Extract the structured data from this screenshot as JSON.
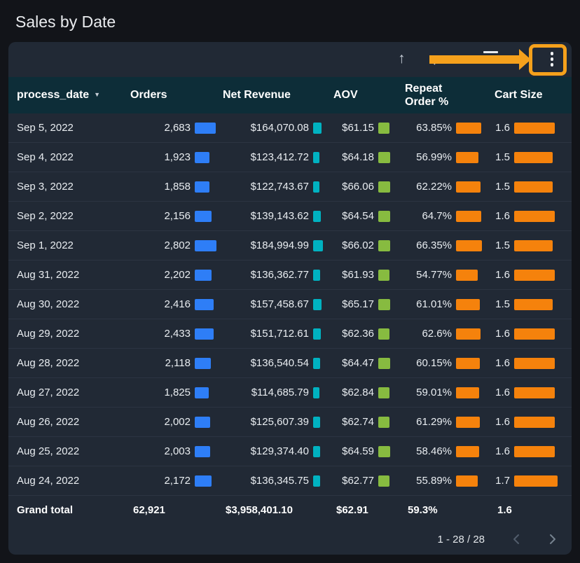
{
  "page": {
    "title": "Sales by Date"
  },
  "card": {
    "toolbar": {
      "up_glyph": "↑",
      "down_glyph": "↓"
    },
    "pagination": {
      "label": "1 - 28 / 28"
    }
  },
  "annotation": {
    "color": "#f5a11c"
  },
  "table": {
    "sort_indicator": "▼",
    "columns": [
      {
        "label": "process_date",
        "sort": "desc"
      },
      {
        "label": "Orders"
      },
      {
        "label": "Net Revenue"
      },
      {
        "label": "AOV"
      },
      {
        "label": "Repeat Order %"
      },
      {
        "label": "Cart Size"
      }
    ],
    "rows": [
      {
        "date": "Sep 5, 2022",
        "orders": "2,683",
        "revenue": "$164,070.08",
        "aov": "$61.15",
        "repeat": "63.85%",
        "cart": "1.6"
      },
      {
        "date": "Sep 4, 2022",
        "orders": "1,923",
        "revenue": "$123,412.72",
        "aov": "$64.18",
        "repeat": "56.99%",
        "cart": "1.5"
      },
      {
        "date": "Sep 3, 2022",
        "orders": "1,858",
        "revenue": "$122,743.67",
        "aov": "$66.06",
        "repeat": "62.22%",
        "cart": "1.5"
      },
      {
        "date": "Sep 2, 2022",
        "orders": "2,156",
        "revenue": "$139,143.62",
        "aov": "$64.54",
        "repeat": "64.7%",
        "cart": "1.6"
      },
      {
        "date": "Sep 1, 2022",
        "orders": "2,802",
        "revenue": "$184,994.99",
        "aov": "$66.02",
        "repeat": "66.35%",
        "cart": "1.5"
      },
      {
        "date": "Aug 31, 2022",
        "orders": "2,202",
        "revenue": "$136,362.77",
        "aov": "$61.93",
        "repeat": "54.77%",
        "cart": "1.6"
      },
      {
        "date": "Aug 30, 2022",
        "orders": "2,416",
        "revenue": "$157,458.67",
        "aov": "$65.17",
        "repeat": "61.01%",
        "cart": "1.5"
      },
      {
        "date": "Aug 29, 2022",
        "orders": "2,433",
        "revenue": "$151,712.61",
        "aov": "$62.36",
        "repeat": "62.6%",
        "cart": "1.6"
      },
      {
        "date": "Aug 28, 2022",
        "orders": "2,118",
        "revenue": "$136,540.54",
        "aov": "$64.47",
        "repeat": "60.15%",
        "cart": "1.6"
      },
      {
        "date": "Aug 27, 2022",
        "orders": "1,825",
        "revenue": "$114,685.79",
        "aov": "$62.84",
        "repeat": "59.01%",
        "cart": "1.6"
      },
      {
        "date": "Aug 26, 2022",
        "orders": "2,002",
        "revenue": "$125,607.39",
        "aov": "$62.74",
        "repeat": "61.29%",
        "cart": "1.6"
      },
      {
        "date": "Aug 25, 2022",
        "orders": "2,003",
        "revenue": "$129,374.40",
        "aov": "$64.59",
        "repeat": "58.46%",
        "cart": "1.6"
      },
      {
        "date": "Aug 24, 2022",
        "orders": "2,172",
        "revenue": "$136,345.75",
        "aov": "$62.77",
        "repeat": "55.89%",
        "cart": "1.7"
      }
    ],
    "grand_total": {
      "label": "Grand total",
      "orders": "62,921",
      "revenue": "$3,958,401.10",
      "aov": "$62.91",
      "repeat": "59.3%",
      "cart": "1.6"
    }
  },
  "bars": {
    "orders": {
      "color": "#2e7ef7",
      "max": 2802,
      "max_width": 31
    },
    "revenue": {
      "color": "#00b2c1",
      "max": 184994.99,
      "max_width": 14
    },
    "aov": {
      "color": "#87bb40",
      "max": 66.06,
      "max_width": 17
    },
    "repeat": {
      "color": "#f5820c",
      "max": 66.35,
      "max_width": 37
    },
    "cart": {
      "color": "#f5820c",
      "max": 1.7,
      "max_width": 62
    }
  },
  "chart_data": {
    "type": "table",
    "title": "Sales by Date",
    "columns": [
      "process_date",
      "Orders",
      "Net Revenue",
      "AOV",
      "Repeat Order %",
      "Cart Size"
    ],
    "sort": {
      "column": "process_date",
      "direction": "desc"
    },
    "rows": [
      [
        "Sep 5, 2022",
        2683,
        164070.08,
        61.15,
        63.85,
        1.6
      ],
      [
        "Sep 4, 2022",
        1923,
        123412.72,
        64.18,
        56.99,
        1.5
      ],
      [
        "Sep 3, 2022",
        1858,
        122743.67,
        66.06,
        62.22,
        1.5
      ],
      [
        "Sep 2, 2022",
        2156,
        139143.62,
        64.54,
        64.7,
        1.6
      ],
      [
        "Sep 1, 2022",
        2802,
        184994.99,
        66.02,
        66.35,
        1.5
      ],
      [
        "Aug 31, 2022",
        2202,
        136362.77,
        61.93,
        54.77,
        1.6
      ],
      [
        "Aug 30, 2022",
        2416,
        157458.67,
        65.17,
        61.01,
        1.5
      ],
      [
        "Aug 29, 2022",
        2433,
        151712.61,
        62.36,
        62.6,
        1.6
      ],
      [
        "Aug 28, 2022",
        2118,
        136540.54,
        64.47,
        60.15,
        1.6
      ],
      [
        "Aug 27, 2022",
        1825,
        114685.79,
        62.84,
        59.01,
        1.6
      ],
      [
        "Aug 26, 2022",
        2002,
        125607.39,
        62.74,
        61.29,
        1.6
      ],
      [
        "Aug 25, 2022",
        2003,
        129374.4,
        64.59,
        58.46,
        1.6
      ],
      [
        "Aug 24, 2022",
        2172,
        136345.75,
        62.77,
        55.89,
        1.7
      ]
    ],
    "grand_total": [
      "Grand total",
      62921,
      3958401.1,
      62.91,
      59.3,
      1.6
    ],
    "inline_bar_colors": {
      "Orders": "#2e7ef7",
      "Net Revenue": "#00b2c1",
      "AOV": "#87bb40",
      "Repeat Order %": "#f5820c",
      "Cart Size": "#f5820c"
    },
    "pagination": "1 - 28 / 28"
  }
}
